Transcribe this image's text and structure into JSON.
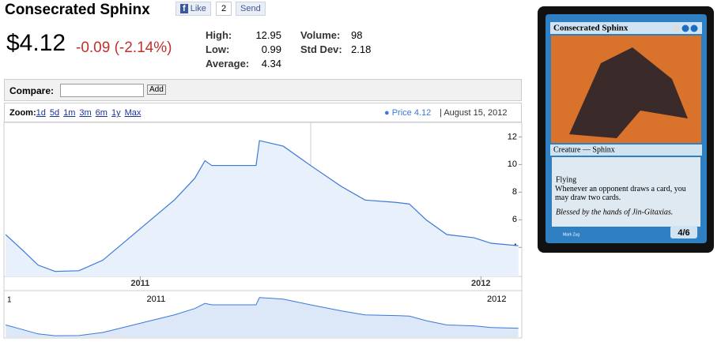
{
  "header": {
    "title": "Consecrated Sphinx",
    "like": "Like",
    "like_count": "2",
    "send": "Send",
    "price": "$4.12",
    "change": "-0.09 (-2.14%)"
  },
  "stats": {
    "high_label": "High:",
    "high": 12.95,
    "low_label": "Low:",
    "low": 0.99,
    "average_label": "Average:",
    "average": 4.34,
    "volume_label": "Volume:",
    "volume": 98,
    "std_dev_label": "Std Dev:",
    "std_dev": 2.18
  },
  "compare": {
    "label": "Compare:",
    "button": "Add"
  },
  "zoom": {
    "label": "Zoom:",
    "options": [
      "1d",
      "5d",
      "1m",
      "3m",
      "6m",
      "1y",
      "Max"
    ]
  },
  "navigator": {
    "label": "1"
  },
  "card": {
    "name": "Consecrated Sphinx",
    "type_line": "Creature — Sphinx",
    "rules": [
      "Flying",
      "Whenever an opponent draws a card, you may draw two cards."
    ],
    "flavor": "Blessed by the hands of Jin-Gitaxias.",
    "artist": "Mark Zug",
    "pt": "4/6"
  },
  "chart_data": {
    "type": "line",
    "legend_value": "4.12",
    "legend_date": "August 15, 2012",
    "x": [
      2010.605,
      2010.656,
      2010.7,
      2010.75,
      2010.82,
      2010.89,
      2010.96,
      2011.03,
      2011.1,
      2011.16,
      2011.19,
      2011.21,
      2011.34,
      2011.35,
      2011.42,
      2011.5,
      2011.59,
      2011.66,
      2011.75,
      2011.79,
      2011.84,
      2011.9,
      2011.98,
      2012.03,
      2012.11
    ],
    "series": [
      {
        "name": "Price",
        "color": "#3a78d8",
        "values": [
          4.93,
          3.77,
          2.72,
          2.26,
          2.31,
          3.07,
          4.52,
          5.98,
          7.43,
          9.0,
          10.28,
          9.93,
          9.93,
          11.73,
          11.33,
          9.93,
          8.42,
          7.43,
          7.26,
          7.14,
          5.98,
          4.93,
          4.7,
          4.3,
          4.12
        ]
      }
    ],
    "xlim": [
      2010.6,
      2012.12
    ],
    "xticks": [
      2011,
      2012
    ],
    "ylim": [
      1.9,
      13.05
    ],
    "yticks": [
      4,
      6,
      8,
      10,
      12
    ]
  }
}
